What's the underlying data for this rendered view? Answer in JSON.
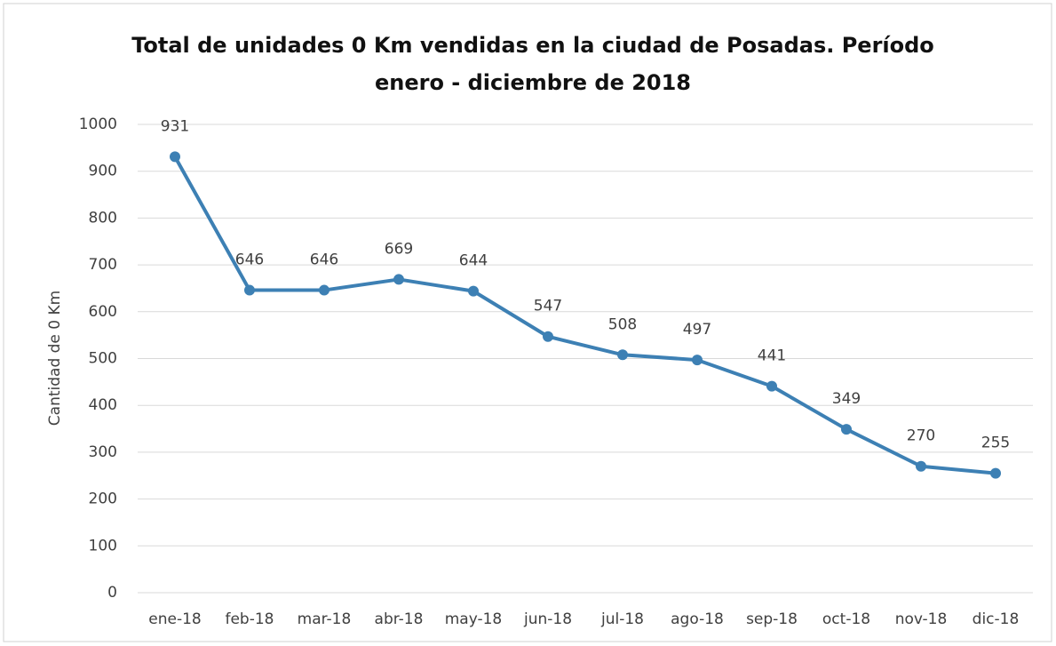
{
  "chart_data": {
    "type": "line",
    "title": "Total de unidades 0 Km vendidas en la ciudad de Posadas. Período enero - diciembre de 2018",
    "y_label": "Cantidad de 0 Km",
    "categories": [
      "ene-18",
      "feb-18",
      "mar-18",
      "abr-18",
      "may-18",
      "jun-18",
      "jul-18",
      "ago-18",
      "sep-18",
      "oct-18",
      "nov-18",
      "dic-18"
    ],
    "series": [
      {
        "name": "Cantidad de 0 Km",
        "color": "#3d80b4",
        "values": [
          931,
          646,
          646,
          669,
          644,
          547,
          508,
          497,
          441,
          349,
          270,
          255
        ]
      }
    ],
    "ylim": [
      0,
      1000
    ],
    "yticks": [
      0,
      100,
      200,
      300,
      400,
      500,
      600,
      700,
      800,
      900,
      1000
    ],
    "grid": true,
    "data_labels": true
  }
}
